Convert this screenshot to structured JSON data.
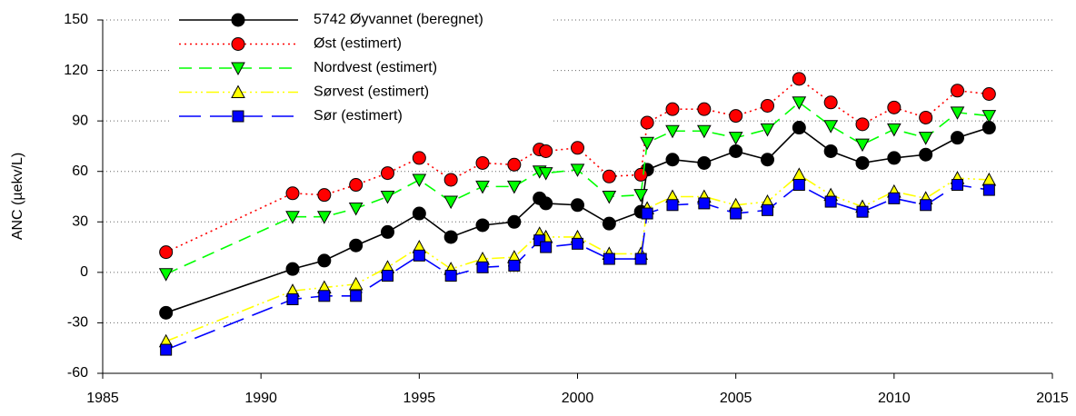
{
  "chart_data": {
    "type": "line",
    "y_label": "ANC (µekv/L)",
    "x": [
      1987,
      1991,
      1992,
      1993,
      1994,
      1995,
      1996,
      1997,
      1998,
      1998.8,
      1999,
      2000,
      2001,
      2002,
      2002.2,
      2003,
      2004,
      2005,
      2006,
      2007,
      2008,
      2009,
      2010,
      2011,
      2012,
      2013
    ],
    "series": [
      {
        "name": "5742 Øyvannet (beregnet)",
        "color": "#000000",
        "line_style": "solid",
        "marker": "circle",
        "values": [
          -24,
          2,
          7,
          16,
          24,
          35,
          21,
          28,
          30,
          44,
          41,
          40,
          29,
          36,
          61,
          67,
          65,
          72,
          67,
          86,
          72,
          65,
          68,
          70,
          80,
          86
        ]
      },
      {
        "name": "Øst (estimert)",
        "color": "#ff0000",
        "line_style": "dotted",
        "marker": "circle",
        "values": [
          12,
          47,
          46,
          52,
          59,
          68,
          55,
          65,
          64,
          73,
          72,
          74,
          57,
          58,
          89,
          97,
          97,
          93,
          99,
          115,
          101,
          88,
          98,
          92,
          108,
          106
        ]
      },
      {
        "name": "Nordvest (estimert)",
        "color": "#00ff00",
        "line_style": "dashed",
        "marker": "triangle-down",
        "values": [
          -1,
          33,
          33,
          38,
          45,
          55,
          42,
          51,
          51,
          60,
          59,
          61,
          45,
          46,
          77,
          84,
          84,
          80,
          85,
          101,
          87,
          76,
          85,
          80,
          95,
          93
        ]
      },
      {
        "name": "Sørvest (estimert)",
        "color": "#ffff00",
        "line_style": "dash-dot-dot",
        "marker": "triangle-up",
        "values": [
          -41,
          -11,
          -9,
          -7,
          3,
          15,
          2,
          8,
          9,
          23,
          21,
          21,
          11,
          11,
          38,
          45,
          45,
          40,
          42,
          58,
          46,
          39,
          48,
          44,
          56,
          55
        ]
      },
      {
        "name": "Sør (estimert)",
        "color": "#0000ff",
        "line_style": "long-dash",
        "marker": "square",
        "values": [
          -46,
          -16,
          -14,
          -14,
          -2,
          10,
          -2,
          3,
          4,
          19,
          15,
          17,
          8,
          8,
          35,
          40,
          41,
          35,
          37,
          52,
          42,
          36,
          44,
          40,
          52,
          49
        ]
      }
    ],
    "xlim": [
      1985,
      2015
    ],
    "xticks": [
      1985,
      1990,
      1995,
      2000,
      2005,
      2010,
      2015
    ],
    "ylim": [
      -60,
      150
    ],
    "yticks": [
      -60,
      -30,
      0,
      30,
      60,
      90,
      120,
      150
    ],
    "grid": true,
    "legend": "upper-left"
  }
}
